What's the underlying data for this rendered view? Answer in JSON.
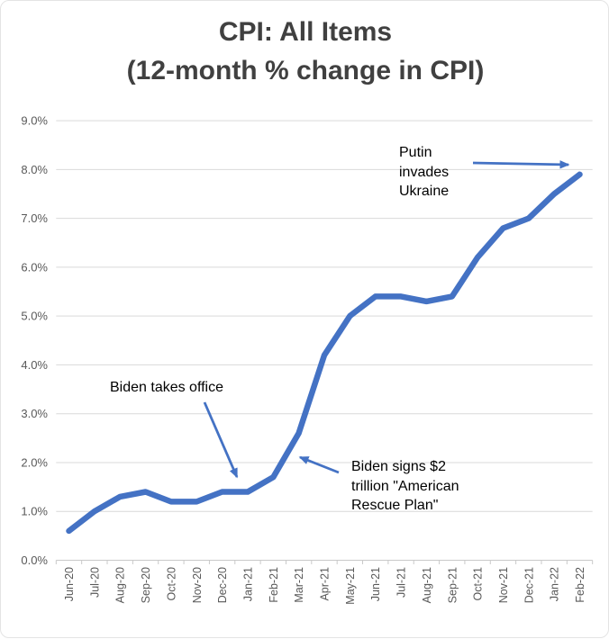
{
  "title": {
    "line1": "CPI: All Items",
    "line2": "(12-month % change in CPI)"
  },
  "chart_data": {
    "type": "line",
    "title": "CPI: All Items (12-month % change in CPI)",
    "xlabel": "",
    "ylabel": "",
    "categories": [
      "Jun-20",
      "Jul-20",
      "Aug-20",
      "Sep-20",
      "Oct-20",
      "Nov-20",
      "Dec-20",
      "Jan-21",
      "Feb-21",
      "Mar-21",
      "Apr-21",
      "May-21",
      "Jun-21",
      "Jul-21",
      "Aug-21",
      "Sep-21",
      "Oct-21",
      "Nov-21",
      "Dec-21",
      "Jan-22",
      "Feb-22"
    ],
    "series": [
      {
        "name": "CPI 12-month % change",
        "values": [
          0.6,
          1.0,
          1.3,
          1.4,
          1.2,
          1.2,
          1.4,
          1.4,
          1.7,
          2.6,
          4.2,
          5.0,
          5.4,
          5.4,
          5.3,
          5.4,
          6.2,
          6.8,
          7.0,
          7.5,
          7.9
        ]
      }
    ],
    "ylim": [
      0,
      9
    ],
    "ytick_step": 1,
    "y_tick_labels": [
      "0.0%",
      "1.0%",
      "2.0%",
      "3.0%",
      "4.0%",
      "5.0%",
      "6.0%",
      "7.0%",
      "8.0%",
      "9.0%"
    ],
    "grid": true,
    "legend_position": "none",
    "annotations": [
      {
        "id": "biden-takes-office",
        "text": "Biden takes office",
        "arrow": {
          "from": [
            226,
            446
          ],
          "to": [
            262,
            529
          ]
        }
      },
      {
        "id": "american-rescue-plan",
        "text": "Biden signs $2\ntrillion \"American\nRescue Plan\"",
        "arrow": {
          "from": [
            375,
            524
          ],
          "to": [
            332,
            507
          ]
        }
      },
      {
        "id": "putin-invades-ukraine",
        "text": "Putin\ninvades\nUkraine",
        "arrow": {
          "from": [
            524,
            180
          ],
          "to": [
            630,
            182
          ]
        }
      }
    ]
  },
  "colors": {
    "line": "#4472C4",
    "arrow": "#4472C4",
    "gridline": "#D9D9D9",
    "axis": "#C9C9C9",
    "axis_text": "#595959",
    "title_text": "#404040",
    "annotation_text": "#000000",
    "background": "#FFFFFF"
  }
}
